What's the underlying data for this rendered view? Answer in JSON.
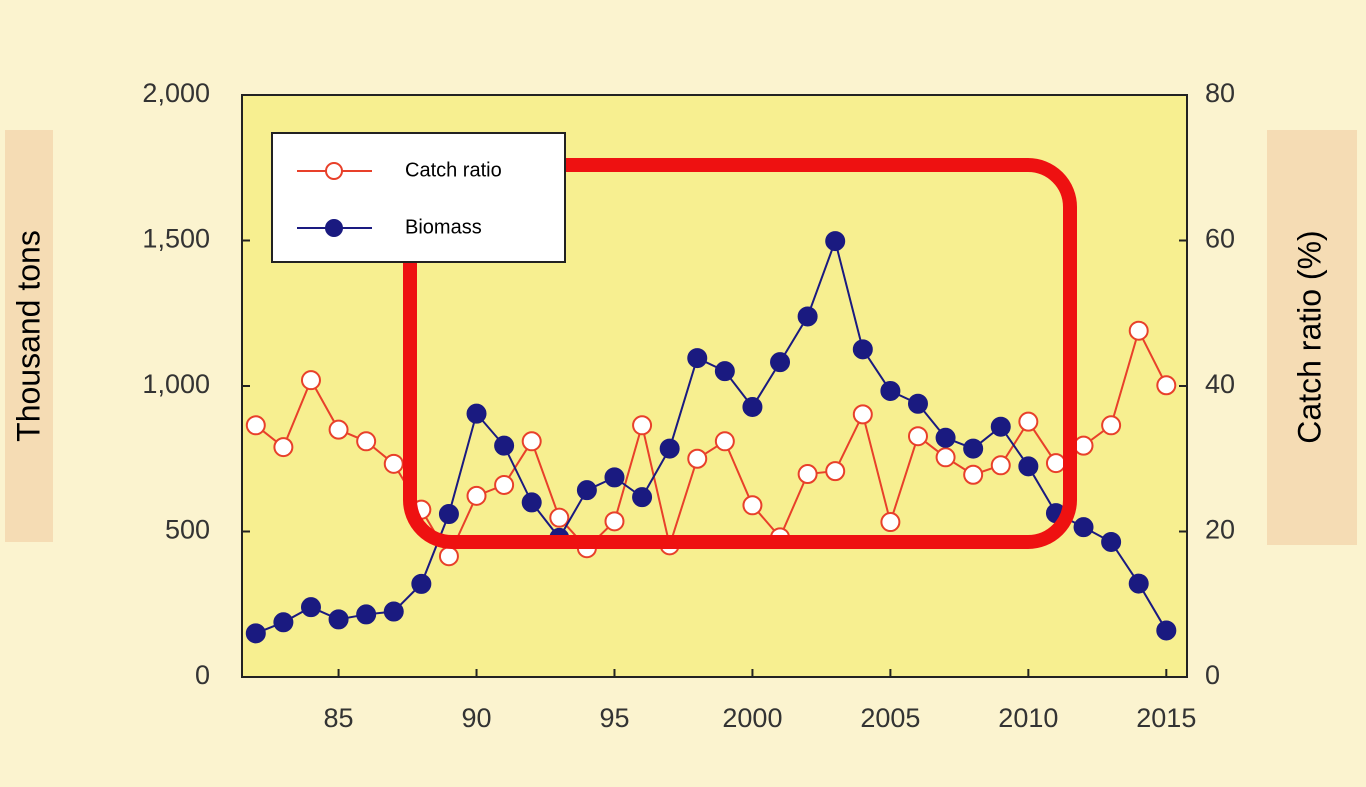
{
  "chart_data": {
    "type": "line",
    "x": [
      1982,
      1983,
      1984,
      1985,
      1986,
      1987,
      1988,
      1989,
      1990,
      1991,
      1992,
      1993,
      1994,
      1995,
      1996,
      1997,
      1998,
      1999,
      2000,
      2001,
      2002,
      2003,
      2004,
      2005,
      2006,
      2007,
      2008,
      2009,
      2010,
      2011,
      2012,
      2013,
      2014,
      2015
    ],
    "series": [
      {
        "name": "Catch ratio",
        "color": "#e8402a",
        "axis": "y2",
        "marker": "open",
        "values": [
          34.6,
          31.6,
          40.8,
          34.0,
          32.4,
          29.3,
          23.0,
          16.6,
          24.9,
          26.4,
          32.4,
          21.9,
          17.7,
          21.4,
          34.6,
          18.1,
          30.0,
          32.4,
          23.6,
          19.2,
          27.9,
          28.3,
          36.1,
          21.3,
          33.1,
          30.2,
          27.8,
          29.1,
          35.1,
          29.4,
          31.8,
          34.6,
          47.6,
          40.1
        ]
      },
      {
        "name": "Biomass",
        "color": "#1a1a80",
        "marker": "filled",
        "values": [
          150,
          188,
          240,
          198,
          215,
          225,
          320,
          560,
          905,
          795,
          600,
          478,
          642,
          686,
          618,
          785,
          1096,
          1051,
          928,
          1082,
          1239,
          1498,
          1126,
          983,
          939,
          822,
          785,
          860,
          724,
          563,
          515,
          464,
          321,
          160
        ]
      }
    ],
    "xlim": [
      1981.5,
      2015.75
    ],
    "xticks": [
      {
        "value": 1985,
        "label": "85"
      },
      {
        "value": 1990,
        "label": "90"
      },
      {
        "value": 1995,
        "label": "95"
      },
      2000,
      2005,
      2010,
      2015
    ],
    "ylim": [
      0,
      2000
    ],
    "yticks": [
      0,
      500,
      {
        "value": 1000,
        "label": "1,000"
      },
      {
        "value": 1500,
        "label": "1,500"
      },
      {
        "value": 2000,
        "label": "2,000"
      }
    ],
    "y2lim": [
      0,
      80
    ],
    "y2ticks": [
      0,
      20,
      40,
      60,
      80
    ],
    "y_label": "Thousand tons",
    "y2_label": "Catch ratio (%)",
    "legend": "upper left",
    "grid": false
  }
}
